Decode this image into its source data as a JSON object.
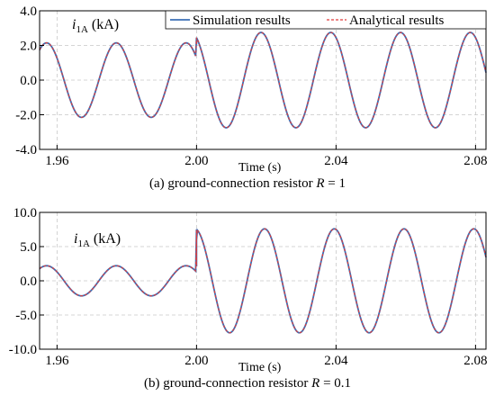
{
  "chart_data": [
    {
      "type": "line",
      "title": "",
      "ylabel": "i1A (kA)",
      "ylabel_parts": {
        "symbol": "i",
        "subscript": "1A",
        "unit": "(kA)"
      },
      "xlabel": "Time (s)",
      "caption": {
        "prefix": "(a) ground-connection resistor ",
        "var": "R",
        "suffix": " = 1"
      },
      "xlim": [
        1.955,
        2.083
      ],
      "ylim": [
        -4.0,
        4.0
      ],
      "xticks": [
        1.96,
        2.0,
        2.04,
        2.08
      ],
      "xtick_labels": [
        "1.96",
        "2.00",
        "2.04",
        "2.08"
      ],
      "yticks": [
        -4.0,
        -2.0,
        0.0,
        2.0,
        4.0
      ],
      "ytick_labels": [
        "-4.0",
        "-2.0",
        "0.0",
        "2.0",
        "4.0"
      ],
      "grid": true,
      "legend_position": "top-right",
      "legend": [
        "Simulation results",
        "Analytical results"
      ],
      "series": [
        {
          "name": "Simulation results",
          "color": "#3b6fb6",
          "dash": "solid"
        },
        {
          "name": "Analytical results",
          "color": "#e03a3a",
          "dash": "dashed"
        }
      ],
      "signal": {
        "frequency_hz": 50,
        "pre": {
          "amplitude_kA": 2.15,
          "peak_time_s": 1.977
        },
        "event_time_s": 2.0,
        "event_value_kA": 2.05,
        "jump_value_kA": 2.45,
        "post": {
          "amplitude_kA": 2.75,
          "peak_time_s": 2.0185
        }
      }
    },
    {
      "type": "line",
      "title": "",
      "ylabel": "i1A (kA)",
      "ylabel_parts": {
        "symbol": "i",
        "subscript": "1A",
        "unit": "(kA)"
      },
      "xlabel": "Time (s)",
      "caption": {
        "prefix": "(b) ground-connection resistor ",
        "var": "R",
        "suffix": " = 0.1"
      },
      "xlim": [
        1.955,
        2.083
      ],
      "ylim": [
        -10.0,
        10.0
      ],
      "xticks": [
        1.96,
        2.0,
        2.04,
        2.08
      ],
      "xtick_labels": [
        "1.96",
        "2.00",
        "2.04",
        "2.08"
      ],
      "yticks": [
        -10.0,
        -5.0,
        0.0,
        5.0,
        10.0
      ],
      "ytick_labels": [
        "-10.0",
        "-5.0",
        "0.0",
        "5.0",
        "10.0"
      ],
      "grid": true,
      "legend": [],
      "series": [
        {
          "name": "Simulation results",
          "color": "#3b6fb6",
          "dash": "solid"
        },
        {
          "name": "Analytical results",
          "color": "#e03a3a",
          "dash": "dashed"
        }
      ],
      "signal": {
        "frequency_hz": 50,
        "pre": {
          "amplitude_kA": 2.2,
          "peak_time_s": 1.977
        },
        "event_time_s": 2.0,
        "event_value_kA": 2.1,
        "jump_value_kA": 6.0,
        "post": {
          "amplitude_kA": 7.6,
          "peak_time_s": 2.0195
        }
      }
    }
  ]
}
